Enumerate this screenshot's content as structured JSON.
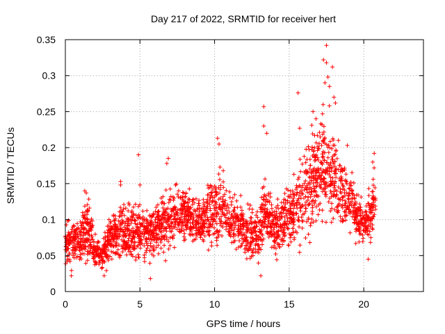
{
  "chart_data": {
    "type": "scatter",
    "title": "Day 217 of 2022, SRMTID for receiver hert",
    "xlabel": "GPS time / hours",
    "ylabel": "SRMTID / TECUs",
    "xlim": [
      0,
      24
    ],
    "ylim": [
      0,
      0.35
    ],
    "xticks": [
      0,
      5,
      10,
      15,
      20
    ],
    "xtick_labels": [
      "0",
      "5",
      "10",
      "15",
      "20"
    ],
    "yticks": [
      0,
      0.05,
      0.1,
      0.15,
      0.2,
      0.25,
      0.3,
      0.35
    ],
    "ytick_labels": [
      "0",
      "0.05",
      "0.1",
      "0.15",
      "0.2",
      "0.25",
      "0.3",
      "0.35"
    ],
    "grid": true,
    "marker": "+",
    "color": "#ff0000",
    "x_range_of_data": [
      0,
      20.8
    ],
    "profile": [
      {
        "t": 0.0,
        "low": 0.025,
        "high": 0.1
      },
      {
        "t": 1.0,
        "low": 0.025,
        "high": 0.1
      },
      {
        "t": 1.5,
        "low": 0.03,
        "high": 0.14
      },
      {
        "t": 2.0,
        "low": 0.025,
        "high": 0.08
      },
      {
        "t": 2.5,
        "low": 0.025,
        "high": 0.07
      },
      {
        "t": 3.0,
        "low": 0.03,
        "high": 0.11
      },
      {
        "t": 3.5,
        "low": 0.03,
        "high": 0.12
      },
      {
        "t": 4.0,
        "low": 0.03,
        "high": 0.12
      },
      {
        "t": 5.0,
        "low": 0.03,
        "high": 0.12
      },
      {
        "t": 6.0,
        "low": 0.03,
        "high": 0.12
      },
      {
        "t": 6.5,
        "low": 0.04,
        "high": 0.14
      },
      {
        "t": 7.0,
        "low": 0.04,
        "high": 0.14
      },
      {
        "t": 8.0,
        "low": 0.05,
        "high": 0.15
      },
      {
        "t": 9.0,
        "low": 0.05,
        "high": 0.13
      },
      {
        "t": 10.0,
        "low": 0.05,
        "high": 0.16
      },
      {
        "t": 10.5,
        "low": 0.06,
        "high": 0.17
      },
      {
        "t": 11.0,
        "low": 0.05,
        "high": 0.14
      },
      {
        "t": 12.0,
        "low": 0.04,
        "high": 0.12
      },
      {
        "t": 13.0,
        "low": 0.03,
        "high": 0.11
      },
      {
        "t": 13.3,
        "low": 0.05,
        "high": 0.16
      },
      {
        "t": 14.0,
        "low": 0.04,
        "high": 0.12
      },
      {
        "t": 15.0,
        "low": 0.04,
        "high": 0.15
      },
      {
        "t": 16.0,
        "low": 0.05,
        "high": 0.2
      },
      {
        "t": 17.0,
        "low": 0.06,
        "high": 0.24
      },
      {
        "t": 17.5,
        "low": 0.07,
        "high": 0.25
      },
      {
        "t": 18.0,
        "low": 0.07,
        "high": 0.22
      },
      {
        "t": 19.0,
        "low": 0.07,
        "high": 0.17
      },
      {
        "t": 20.0,
        "low": 0.05,
        "high": 0.12
      },
      {
        "t": 20.8,
        "low": 0.07,
        "high": 0.18
      }
    ],
    "notable_points": [
      {
        "x": 17.5,
        "y": 0.342
      },
      {
        "x": 17.3,
        "y": 0.322
      },
      {
        "x": 17.5,
        "y": 0.318
      },
      {
        "x": 17.9,
        "y": 0.312
      },
      {
        "x": 17.6,
        "y": 0.298
      },
      {
        "x": 17.7,
        "y": 0.285
      },
      {
        "x": 17.4,
        "y": 0.29
      },
      {
        "x": 18.0,
        "y": 0.27
      },
      {
        "x": 18.1,
        "y": 0.262
      },
      {
        "x": 15.6,
        "y": 0.276
      },
      {
        "x": 13.3,
        "y": 0.257
      },
      {
        "x": 16.6,
        "y": 0.25
      },
      {
        "x": 16.8,
        "y": 0.24
      },
      {
        "x": 17.2,
        "y": 0.232
      },
      {
        "x": 15.7,
        "y": 0.227
      },
      {
        "x": 13.3,
        "y": 0.23
      },
      {
        "x": 13.5,
        "y": 0.22
      },
      {
        "x": 10.2,
        "y": 0.213
      },
      {
        "x": 10.3,
        "y": 0.205
      },
      {
        "x": 18.3,
        "y": 0.21
      },
      {
        "x": 18.9,
        "y": 0.203
      },
      {
        "x": 4.9,
        "y": 0.19
      },
      {
        "x": 6.9,
        "y": 0.185
      },
      {
        "x": 6.8,
        "y": 0.178
      },
      {
        "x": 20.7,
        "y": 0.192
      },
      {
        "x": 20.6,
        "y": 0.18
      },
      {
        "x": 3.7,
        "y": 0.153
      },
      {
        "x": 3.7,
        "y": 0.148
      },
      {
        "x": 1.3,
        "y": 0.14
      },
      {
        "x": 1.4,
        "y": 0.137
      },
      {
        "x": 5.0,
        "y": 0.148
      },
      {
        "x": 2.6,
        "y": 0.022
      },
      {
        "x": 0.4,
        "y": 0.022
      },
      {
        "x": 5.7,
        "y": 0.018
      },
      {
        "x": 13.1,
        "y": 0.022
      },
      {
        "x": 20.3,
        "y": 0.045
      }
    ]
  }
}
